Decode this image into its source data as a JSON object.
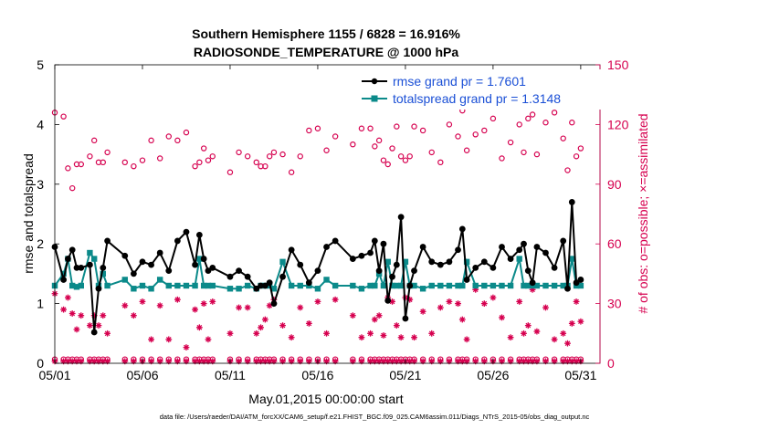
{
  "chart_data": {
    "type": "line",
    "title": [
      "Southern Hemisphere 1155 / 6828 = 16.916%",
      "RADIOSONDE_TEMPERATURE @ 1000 hPa"
    ],
    "xlabel": "May.01,2015 00:00:00 start",
    "ylabel_left": "rmse and totalspread",
    "ylabel_right": "# of obs: o=possible; ×=assimilated",
    "footer": "data file: /Users/raeder/DAI/ATM_forcXX/CAM6_setup/f.e21.FHIST_BGC.f09_025.CAM6assim.011/Diags_NTrS_2015-05/obs_diag_output.nc",
    "xlim": [
      1,
      32.1
    ],
    "ylim_left": [
      0,
      5
    ],
    "ylim_right": [
      0,
      150
    ],
    "xticks": [
      1,
      6,
      11,
      16,
      21,
      26,
      31
    ],
    "xtick_labels": [
      "05/01",
      "05/06",
      "05/11",
      "05/16",
      "05/21",
      "05/26",
      "05/31"
    ],
    "yticks_left": [
      0,
      1,
      2,
      3,
      4,
      5
    ],
    "yticks_right": [
      0,
      30,
      60,
      90,
      120,
      150
    ],
    "grid": false,
    "legend_position": "top-right",
    "colors": {
      "rmse": "#000000",
      "spread": "#0b8a8a",
      "obs": "#d6004f"
    },
    "series": [
      {
        "name": "rmse grand pr = 1.7601",
        "x": [
          1.0,
          1.5,
          1.75,
          2.0,
          2.25,
          2.5,
          3.0,
          3.25,
          3.5,
          3.75,
          4.0,
          5.0,
          5.5,
          6.0,
          6.5,
          7.0,
          7.5,
          8.0,
          8.5,
          9.0,
          9.25,
          9.5,
          9.75,
          10.0,
          11.0,
          11.5,
          12.0,
          12.5,
          12.75,
          13.0,
          13.25,
          13.5,
          14.0,
          14.5,
          15.0,
          15.5,
          16.0,
          16.5,
          17.0,
          18.0,
          18.5,
          19.0,
          19.25,
          19.5,
          19.75,
          20.0,
          20.25,
          20.5,
          20.75,
          21.0,
          21.25,
          21.5,
          22.0,
          22.5,
          23.0,
          23.5,
          24.0,
          24.25,
          24.5,
          25.0,
          25.5,
          26.0,
          26.5,
          27.0,
          27.5,
          27.75,
          28.0,
          28.25,
          28.5,
          29.0,
          29.5,
          30.0,
          30.25,
          30.5,
          30.75,
          31.0
        ],
        "y": [
          1.95,
          1.4,
          1.75,
          1.9,
          1.6,
          1.6,
          1.65,
          0.52,
          1.25,
          1.6,
          2.05,
          1.8,
          1.5,
          1.7,
          1.65,
          1.85,
          1.55,
          2.05,
          2.2,
          1.65,
          2.15,
          1.75,
          1.55,
          1.6,
          1.45,
          1.55,
          1.45,
          1.25,
          1.3,
          1.3,
          1.35,
          1.0,
          1.45,
          1.9,
          1.65,
          1.35,
          1.55,
          1.95,
          2.05,
          1.75,
          1.8,
          1.85,
          2.05,
          1.55,
          2.0,
          1.05,
          1.45,
          1.65,
          2.45,
          0.75,
          1.3,
          1.55,
          1.95,
          1.7,
          1.65,
          1.7,
          1.9,
          2.25,
          1.4,
          1.6,
          1.7,
          1.6,
          1.95,
          1.75,
          1.9,
          2.0,
          1.55,
          1.35,
          1.95,
          1.85,
          1.6,
          2.05,
          1.25,
          2.7,
          1.35,
          1.4
        ]
      },
      {
        "name": "totalspread grand pr = 1.3148",
        "x": [
          1.0,
          1.5,
          1.75,
          2.0,
          2.25,
          2.5,
          3.0,
          3.25,
          3.5,
          3.75,
          4.0,
          5.0,
          5.5,
          6.0,
          6.5,
          7.0,
          7.5,
          8.0,
          8.5,
          9.0,
          9.25,
          9.5,
          9.75,
          10.0,
          11.0,
          11.5,
          12.0,
          12.5,
          12.75,
          13.0,
          13.25,
          13.5,
          14.0,
          14.5,
          15.0,
          15.5,
          16.0,
          16.5,
          17.0,
          18.0,
          18.5,
          19.0,
          19.25,
          19.5,
          19.75,
          20.0,
          20.25,
          20.5,
          20.75,
          21.0,
          21.25,
          21.5,
          22.0,
          22.5,
          23.0,
          23.5,
          24.0,
          24.25,
          24.5,
          25.0,
          25.5,
          26.0,
          26.5,
          27.0,
          27.5,
          27.75,
          28.0,
          28.25,
          28.5,
          29.0,
          29.5,
          30.0,
          30.25,
          30.5,
          30.75,
          31.0
        ],
        "y": [
          1.3,
          1.5,
          1.75,
          1.3,
          1.28,
          1.3,
          1.85,
          1.75,
          1.3,
          1.5,
          1.3,
          1.4,
          1.25,
          1.3,
          1.25,
          1.4,
          1.3,
          1.3,
          1.3,
          1.3,
          1.75,
          1.3,
          1.3,
          1.3,
          1.25,
          1.25,
          1.3,
          1.25,
          1.3,
          1.3,
          1.3,
          1.25,
          1.7,
          1.3,
          1.3,
          1.3,
          1.25,
          1.4,
          1.3,
          1.3,
          1.25,
          1.3,
          1.3,
          1.5,
          1.3,
          1.7,
          1.3,
          1.3,
          1.3,
          1.7,
          1.3,
          1.3,
          1.25,
          1.3,
          1.3,
          1.3,
          1.3,
          1.3,
          1.7,
          1.3,
          1.3,
          1.3,
          1.3,
          1.3,
          1.75,
          1.3,
          1.3,
          1.3,
          1.3,
          1.3,
          1.3,
          1.3,
          1.3,
          1.75,
          1.3,
          1.3
        ]
      },
      {
        "name": "possible",
        "x": [
          1.0,
          1.5,
          1.75,
          2.0,
          2.25,
          2.5,
          3.0,
          3.25,
          3.5,
          3.75,
          4.0,
          5.0,
          5.5,
          6.0,
          6.5,
          7.0,
          7.5,
          8.0,
          8.5,
          9.0,
          9.25,
          9.5,
          9.75,
          10.0,
          11.0,
          11.5,
          12.0,
          12.5,
          12.75,
          13.0,
          13.25,
          13.5,
          14.0,
          14.5,
          15.0,
          15.5,
          16.0,
          16.5,
          17.0,
          18.0,
          18.5,
          19.0,
          19.25,
          19.5,
          19.75,
          20.0,
          20.25,
          20.5,
          20.75,
          21.0,
          21.25,
          21.5,
          22.0,
          22.5,
          23.0,
          23.5,
          24.0,
          24.25,
          24.5,
          25.0,
          25.5,
          26.0,
          26.5,
          27.0,
          27.5,
          27.75,
          28.0,
          28.25,
          28.5,
          29.0,
          29.5,
          30.0,
          30.25,
          30.5,
          30.75,
          31.0
        ],
        "y": [
          126,
          124,
          98,
          88,
          100,
          100,
          104,
          112,
          101,
          101,
          106,
          101,
          99,
          102,
          112,
          103,
          114,
          112,
          116,
          99,
          101,
          108,
          102,
          104,
          96,
          106,
          104,
          101,
          99,
          99,
          104,
          106,
          105,
          96,
          104,
          117,
          118,
          107,
          114,
          110,
          118,
          118,
          109,
          112,
          102,
          100,
          108,
          119,
          104,
          102,
          104,
          119,
          117,
          106,
          101,
          120,
          114,
          127,
          107,
          115,
          117,
          123,
          103,
          111,
          120,
          106,
          123,
          125,
          105,
          121,
          126,
          113,
          97,
          121,
          104,
          108
        ]
      },
      {
        "name": "assimilated",
        "x": [
          1.0,
          1.5,
          1.75,
          2.0,
          2.25,
          2.5,
          3.0,
          3.25,
          3.5,
          3.75,
          4.0,
          5.0,
          5.5,
          6.0,
          6.5,
          7.0,
          7.5,
          8.0,
          8.5,
          9.0,
          9.25,
          9.5,
          9.75,
          10.0,
          11.0,
          11.5,
          12.0,
          12.5,
          12.75,
          13.0,
          13.25,
          13.5,
          14.0,
          14.5,
          15.0,
          15.5,
          16.0,
          16.5,
          17.0,
          18.0,
          18.5,
          19.0,
          19.25,
          19.5,
          19.75,
          20.0,
          20.25,
          20.5,
          20.75,
          21.0,
          21.25,
          21.5,
          22.0,
          22.5,
          23.0,
          23.5,
          24.0,
          24.25,
          24.5,
          25.0,
          25.5,
          26.0,
          26.5,
          27.0,
          27.5,
          27.75,
          28.0,
          28.25,
          28.5,
          29.0,
          29.5,
          30.0,
          30.25,
          30.5,
          30.75,
          31.0
        ],
        "y": [
          35,
          27,
          33,
          25,
          17,
          24,
          19,
          24,
          19,
          24,
          15,
          29,
          24,
          31,
          12,
          29,
          12,
          32,
          8,
          27,
          18,
          30,
          12,
          31,
          15,
          28,
          28,
          15,
          18,
          22,
          29,
          32,
          19,
          13,
          28,
          20,
          31,
          15,
          32,
          24,
          13,
          15,
          22,
          24,
          14,
          33,
          31,
          19,
          13,
          33,
          32,
          13,
          26,
          15,
          28,
          31,
          30,
          22,
          12,
          37,
          30,
          33,
          23,
          13,
          31,
          15,
          19,
          37,
          16,
          28,
          12,
          15,
          10,
          20,
          31,
          21
        ]
      }
    ]
  }
}
